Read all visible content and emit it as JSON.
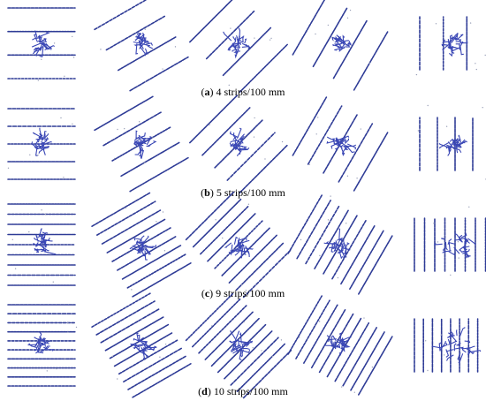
{
  "figure": {
    "panels": [
      {
        "letter": "a",
        "label": "4 strips/100 mm",
        "strips": 4,
        "orientations_deg": [
          0,
          30,
          45,
          60,
          90
        ]
      },
      {
        "letter": "b",
        "label": "5 strips/100 mm",
        "strips": 5,
        "orientations_deg": [
          0,
          30,
          45,
          60,
          90
        ]
      },
      {
        "letter": "c",
        "label": "9 strips/100 mm",
        "strips": 9,
        "orientations_deg": [
          0,
          30,
          45,
          60,
          90
        ]
      },
      {
        "letter": "d",
        "label": "10 strips/100 mm",
        "strips": 10,
        "orientations_deg": [
          0,
          30,
          45,
          60,
          90
        ]
      }
    ],
    "colors": {
      "strip": "#2e3b96",
      "crack": "#3a47b5",
      "caption": "#000000"
    }
  }
}
